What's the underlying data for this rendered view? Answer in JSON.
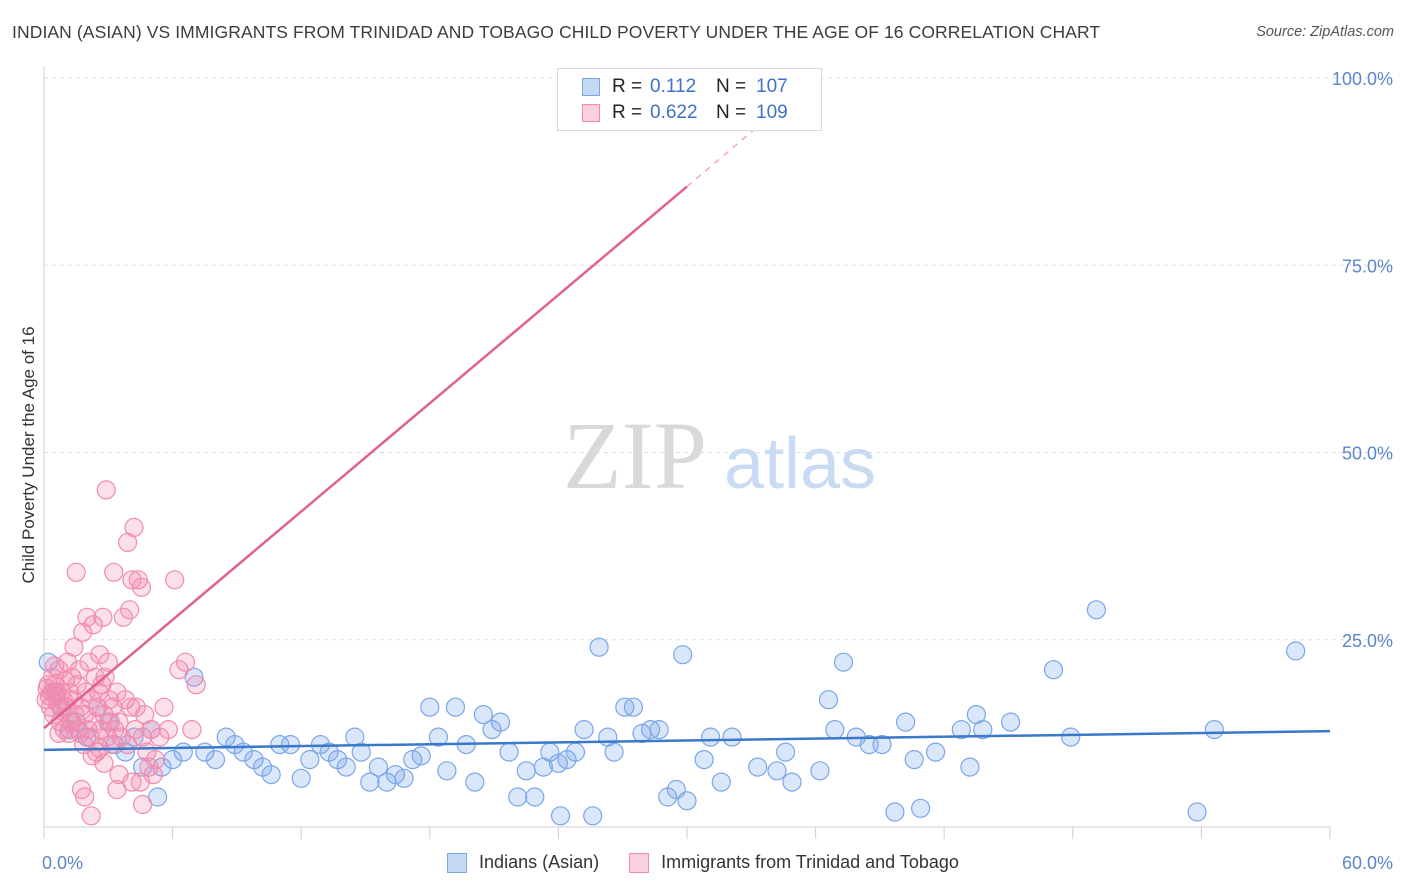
{
  "header": {
    "title": "INDIAN (ASIAN) VS IMMIGRANTS FROM TRINIDAD AND TOBAGO CHILD POVERTY UNDER THE AGE OF 16 CORRELATION CHART",
    "source": "Source: ZipAtlas.com"
  },
  "watermark": {
    "zip": "ZIP",
    "atlas": "atlas"
  },
  "legend": {
    "rows": [
      {
        "r_label": "R =",
        "r_value": "0.112",
        "n_label": "N =",
        "n_value": "107"
      },
      {
        "r_label": "R =",
        "r_value": "0.622",
        "n_label": "N =",
        "n_value": "109"
      }
    ]
  },
  "chart_data": {
    "type": "scatter",
    "title": "INDIAN (ASIAN) VS IMMIGRANTS FROM TRINIDAD AND TOBAGO CHILD POVERTY UNDER THE AGE OF 16 CORRELATION CHART",
    "xlabel": "",
    "ylabel": "Child Poverty Under the Age of 16",
    "xlim": [
      0,
      60
    ],
    "ylim": [
      0,
      100
    ],
    "x_tick_labels": [
      "0.0%",
      "60.0%"
    ],
    "y_ticks": [
      {
        "value": 25,
        "label": "25.0%"
      },
      {
        "value": 50,
        "label": "50.0%"
      },
      {
        "value": 75,
        "label": "75.0%"
      },
      {
        "value": 100,
        "label": "100.0%"
      }
    ],
    "grid": "horizontal-dashed",
    "legend_position": "top-center",
    "series": [
      {
        "name": "Indians (Asian)",
        "color": "#7aa7e8",
        "line_color": "#3a78c9",
        "r": 0.112,
        "n": 107,
        "trend": {
          "x": [
            0,
            60
          ],
          "y": [
            10.3,
            12.8
          ]
        },
        "points": [
          [
            0.2,
            22
          ],
          [
            0.5,
            18
          ],
          [
            0.8,
            16
          ],
          [
            1.2,
            13
          ],
          [
            1.5,
            14
          ],
          [
            2.0,
            12
          ],
          [
            2.5,
            16
          ],
          [
            3.0,
            14
          ],
          [
            3.3,
            11
          ],
          [
            3.8,
            10
          ],
          [
            4.2,
            12
          ],
          [
            4.6,
            8
          ],
          [
            5.0,
            13
          ],
          [
            5.5,
            8
          ],
          [
            6.0,
            9
          ],
          [
            6.5,
            10
          ],
          [
            7.0,
            20
          ],
          [
            7.5,
            10
          ],
          [
            8.0,
            9
          ],
          [
            8.5,
            12
          ],
          [
            8.9,
            11
          ],
          [
            9.3,
            10
          ],
          [
            9.8,
            9
          ],
          [
            10.2,
            8
          ],
          [
            10.6,
            7
          ],
          [
            11.0,
            11
          ],
          [
            11.5,
            11
          ],
          [
            12.0,
            6.5
          ],
          [
            12.4,
            9
          ],
          [
            12.9,
            11
          ],
          [
            13.3,
            10
          ],
          [
            13.7,
            9
          ],
          [
            14.1,
            8
          ],
          [
            14.5,
            12
          ],
          [
            14.8,
            10
          ],
          [
            15.2,
            6
          ],
          [
            15.6,
            8
          ],
          [
            16.0,
            6
          ],
          [
            16.4,
            7
          ],
          [
            16.8,
            6.5
          ],
          [
            17.2,
            9
          ],
          [
            17.6,
            9.5
          ],
          [
            18.0,
            16
          ],
          [
            18.4,
            12
          ],
          [
            18.8,
            7.5
          ],
          [
            19.2,
            16
          ],
          [
            19.7,
            11
          ],
          [
            20.1,
            6
          ],
          [
            20.5,
            15
          ],
          [
            20.9,
            13
          ],
          [
            21.3,
            14
          ],
          [
            21.7,
            10
          ],
          [
            22.1,
            4
          ],
          [
            22.5,
            7.5
          ],
          [
            22.9,
            4
          ],
          [
            23.3,
            8
          ],
          [
            23.6,
            10
          ],
          [
            24.0,
            8.5
          ],
          [
            24.4,
            9
          ],
          [
            24.8,
            10
          ],
          [
            25.2,
            13
          ],
          [
            25.6,
            1.5
          ],
          [
            25.9,
            24
          ],
          [
            26.3,
            12
          ],
          [
            26.6,
            10
          ],
          [
            27.1,
            16
          ],
          [
            27.5,
            16
          ],
          [
            27.9,
            12.5
          ],
          [
            28.3,
            13
          ],
          [
            28.7,
            13
          ],
          [
            29.1,
            4
          ],
          [
            29.5,
            5
          ],
          [
            29.8,
            23
          ],
          [
            30.0,
            3.5
          ],
          [
            30.8,
            9
          ],
          [
            31.1,
            12
          ],
          [
            31.6,
            6
          ],
          [
            32.1,
            12
          ],
          [
            33.3,
            8
          ],
          [
            34.2,
            7.5
          ],
          [
            34.6,
            10
          ],
          [
            34.9,
            6
          ],
          [
            36.2,
            7.5
          ],
          [
            36.6,
            17
          ],
          [
            36.9,
            13
          ],
          [
            37.3,
            22
          ],
          [
            37.9,
            12
          ],
          [
            38.5,
            11
          ],
          [
            39.1,
            11
          ],
          [
            39.7,
            2
          ],
          [
            40.2,
            14
          ],
          [
            40.6,
            9
          ],
          [
            40.9,
            2.5
          ],
          [
            41.6,
            10
          ],
          [
            42.8,
            13
          ],
          [
            43.2,
            8
          ],
          [
            43.5,
            15
          ],
          [
            43.8,
            13
          ],
          [
            45.1,
            14
          ],
          [
            47.1,
            21
          ],
          [
            47.9,
            12
          ],
          [
            49.1,
            29
          ],
          [
            53.8,
            2
          ],
          [
            54.6,
            13
          ],
          [
            58.4,
            23.5
          ],
          [
            5.3,
            4
          ],
          [
            24.1,
            1.5
          ]
        ]
      },
      {
        "name": "Immigrants from Trinidad and Tobago",
        "color": "#f28bb0",
        "line_color": "#e0628e",
        "r": 0.622,
        "n": 109,
        "trend": {
          "x": [
            0,
            30
          ],
          "y": [
            13.2,
            85.5
          ]
        },
        "trend_dashed": {
          "x": [
            30,
            33.5
          ],
          "y": [
            85.5,
            94
          ]
        },
        "points": [
          [
            0.1,
            17
          ],
          [
            0.15,
            18.5
          ],
          [
            0.2,
            19
          ],
          [
            0.25,
            17.5
          ],
          [
            0.3,
            16
          ],
          [
            0.35,
            18
          ],
          [
            0.4,
            20
          ],
          [
            0.45,
            15
          ],
          [
            0.5,
            19
          ],
          [
            0.55,
            17.5
          ],
          [
            0.6,
            18
          ],
          [
            0.65,
            16.5
          ],
          [
            0.7,
            21
          ],
          [
            0.75,
            14
          ],
          [
            0.8,
            18
          ],
          [
            0.85,
            15.5
          ],
          [
            0.9,
            17
          ],
          [
            0.95,
            13
          ],
          [
            1.0,
            19.5
          ],
          [
            1.05,
            16
          ],
          [
            1.1,
            22
          ],
          [
            1.15,
            12.5
          ],
          [
            1.2,
            18
          ],
          [
            1.25,
            14
          ],
          [
            1.3,
            20
          ],
          [
            1.35,
            17
          ],
          [
            1.4,
            24
          ],
          [
            1.45,
            15
          ],
          [
            1.5,
            34
          ],
          [
            1.55,
            19
          ],
          [
            1.6,
            13
          ],
          [
            1.65,
            21
          ],
          [
            1.7,
            16
          ],
          [
            1.75,
            5
          ],
          [
            1.8,
            26
          ],
          [
            1.85,
            11
          ],
          [
            1.9,
            15
          ],
          [
            1.95,
            18
          ],
          [
            2.0,
            28
          ],
          [
            2.05,
            13
          ],
          [
            2.1,
            22
          ],
          [
            2.15,
            12
          ],
          [
            2.2,
            17
          ],
          [
            2.25,
            9.5
          ],
          [
            2.3,
            27
          ],
          [
            2.35,
            14
          ],
          [
            2.4,
            20
          ],
          [
            2.45,
            10
          ],
          [
            2.5,
            16
          ],
          [
            2.55,
            18
          ],
          [
            2.6,
            23
          ],
          [
            2.65,
            13
          ],
          [
            2.7,
            19
          ],
          [
            2.75,
            28
          ],
          [
            2.8,
            15
          ],
          [
            2.85,
            20
          ],
          [
            2.9,
            45
          ],
          [
            2.95,
            12
          ],
          [
            3.0,
            22
          ],
          [
            3.05,
            17
          ],
          [
            3.1,
            14
          ],
          [
            3.15,
            11
          ],
          [
            3.2,
            16
          ],
          [
            3.25,
            34
          ],
          [
            3.3,
            13
          ],
          [
            3.4,
            18
          ],
          [
            3.5,
            14
          ],
          [
            3.6,
            12
          ],
          [
            3.7,
            28
          ],
          [
            3.8,
            17
          ],
          [
            3.9,
            38
          ],
          [
            4.0,
            29
          ],
          [
            4.05,
            16
          ],
          [
            4.1,
            33
          ],
          [
            4.2,
            40
          ],
          [
            4.25,
            13
          ],
          [
            4.3,
            16
          ],
          [
            4.4,
            33
          ],
          [
            4.5,
            6
          ],
          [
            4.55,
            32
          ],
          [
            4.6,
            12
          ],
          [
            4.7,
            15
          ],
          [
            4.8,
            10
          ],
          [
            4.9,
            8
          ],
          [
            5.0,
            13
          ],
          [
            5.1,
            7
          ],
          [
            5.2,
            9
          ],
          [
            5.4,
            12
          ],
          [
            5.6,
            16
          ],
          [
            5.8,
            13
          ],
          [
            6.1,
            33
          ],
          [
            6.3,
            21
          ],
          [
            6.6,
            22
          ],
          [
            6.9,
            13
          ],
          [
            7.1,
            19
          ],
          [
            1.9,
            4
          ],
          [
            2.2,
            1.5
          ],
          [
            3.4,
            5
          ],
          [
            4.6,
            3
          ],
          [
            2.8,
            8.5
          ],
          [
            3.5,
            7
          ],
          [
            4.1,
            6
          ],
          [
            2.6,
            10.5
          ],
          [
            3.9,
            11
          ],
          [
            1.3,
            14
          ],
          [
            0.7,
            12.5
          ],
          [
            1.7,
            12.5
          ],
          [
            28.3,
            98.5
          ],
          [
            0.5,
            21.5
          ]
        ]
      }
    ]
  }
}
